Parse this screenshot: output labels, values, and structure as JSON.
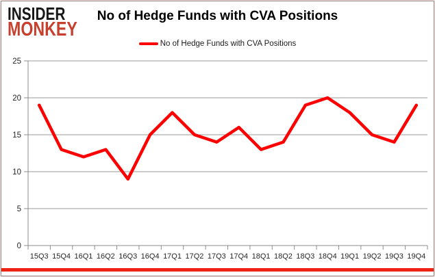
{
  "brand": {
    "line1": "INSIDER",
    "line2": "MONKEY"
  },
  "header": {
    "title": "No of Hedge Funds with CVA Positions"
  },
  "legend": {
    "label": "No of Hedge Funds with CVA Positions"
  },
  "colors": {
    "series": "#ff0000",
    "grid": "#9a9a9a",
    "axis": "#8c8c8c",
    "tick_label": "#262626",
    "brand_black": "#171717",
    "brand_red": "#c7402e",
    "bottom_bar_red": "#ee2316"
  },
  "chart_data": {
    "type": "line",
    "title": "No of Hedge Funds with CVA Positions",
    "categories": [
      "15Q3",
      "15Q4",
      "16Q1",
      "16Q2",
      "16Q3",
      "16Q4",
      "17Q1",
      "17Q2",
      "17Q3",
      "17Q4",
      "18Q1",
      "18Q2",
      "18Q3",
      "18Q4",
      "19Q1",
      "19Q2",
      "19Q3",
      "19Q4"
    ],
    "series": [
      {
        "name": "No of Hedge Funds with CVA Positions",
        "values": [
          19,
          13,
          12,
          13,
          9,
          15,
          18,
          15,
          14,
          16,
          13,
          14,
          19,
          20,
          18,
          15,
          14,
          19
        ]
      }
    ],
    "xlabel": "",
    "ylabel": "",
    "ylim": [
      0,
      25
    ],
    "ytick_step": 5,
    "grid": true,
    "legend_position": "top-center"
  }
}
